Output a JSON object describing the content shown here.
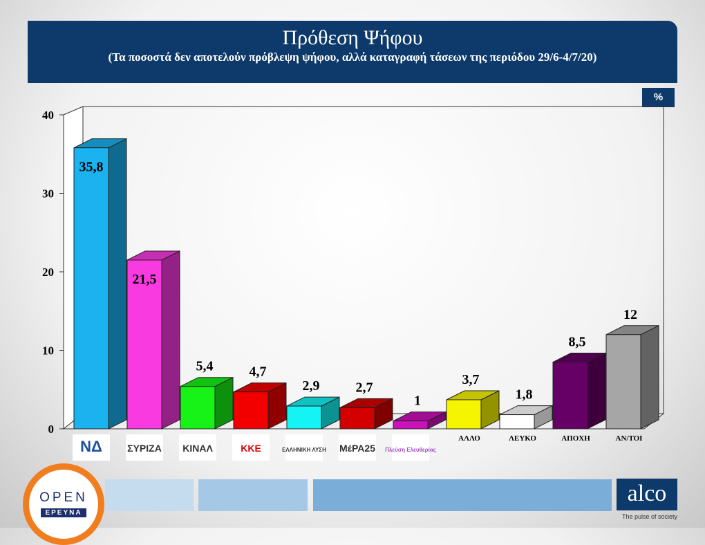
{
  "header": {
    "title": "Πρόθεση Ψήφου",
    "subtitle": "(Τα ποσοστά δεν αποτελούν πρόβλεψη ψήφου, αλλά καταγραφή τάσεων της περιόδου 29/6-4/7/20)"
  },
  "unit_label": "%",
  "chart_data": {
    "type": "bar",
    "categories": [
      "ΝΔ",
      "ΣΥΡΙΖΑ",
      "ΚΙΝΑΛ",
      "ΚΚΕ",
      "ΕΛΛΗΝΙΚΗ ΛΥΣΗ",
      "ΜέΡΑ25",
      "Πλεύση Ελευθερίας",
      "ΑΛΛΟ",
      "ΛΕΥΚΟ",
      "ΑΠΟΧΗ",
      "ΑΝ/ΤΟΙ"
    ],
    "category_is_logo": [
      true,
      true,
      true,
      true,
      true,
      true,
      true,
      false,
      false,
      false,
      false
    ],
    "values": [
      35.8,
      21.5,
      5.4,
      4.7,
      2.9,
      2.7,
      1,
      3.7,
      1.8,
      8.5,
      12
    ],
    "value_labels": [
      "35,8",
      "21,5",
      "5,4",
      "4,7",
      "2,9",
      "2,7",
      "1",
      "3,7",
      "1,8",
      "8,5",
      "12"
    ],
    "colors": [
      "#1ab2ef",
      "#f83ae0",
      "#17f317",
      "#f20000",
      "#14f4f4",
      "#d40000",
      "#cc11bb",
      "#f5f500",
      "#ffffff",
      "#660066",
      "#a6a6a6"
    ],
    "ylim": [
      0,
      40
    ],
    "yticks": [
      0,
      10,
      20,
      30,
      40
    ],
    "grid": false,
    "three_d": true
  },
  "logos": {
    "open_top": "OPEN",
    "open_bottom": "ΕΡΕΥΝΑ",
    "alco": "alco",
    "alco_tagline": "The pulse of society"
  }
}
